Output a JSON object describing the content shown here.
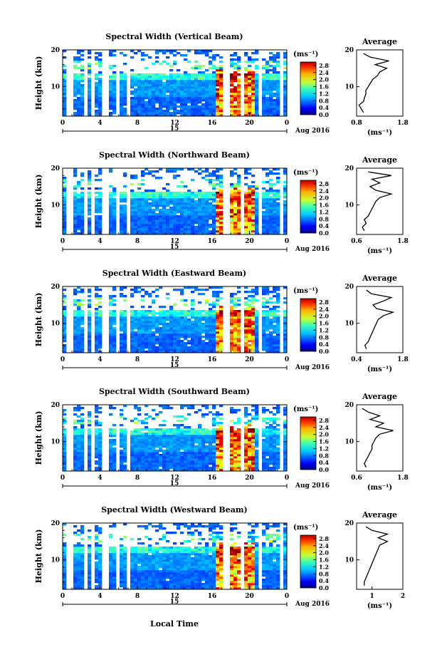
{
  "chart_data": {
    "type": "heatmap",
    "xlabel": "Local Time",
    "date_label": "Aug 2016",
    "day_label": "15",
    "x_ticks": [
      "0",
      "4",
      "8",
      "12",
      "16",
      "20",
      "0"
    ],
    "x_range_hours": [
      0,
      24
    ],
    "ylabel": "Height (km)",
    "y_ticks": [
      "10",
      "20"
    ],
    "ylim_km": [
      2,
      20
    ],
    "colorbar": {
      "unit": "(ms⁻¹)",
      "ticks": [
        "0.0",
        "0.4",
        "0.8",
        "1.2",
        "1.6",
        "2.0",
        "2.4",
        "2.8"
      ],
      "range": [
        0.0,
        3.0
      ]
    },
    "avg_title": "Average",
    "avg_unit": "(ms⁻¹)",
    "panels": [
      {
        "title": "Spectral Width (Vertical Beam)",
        "avg_xticks": [
          "0.8",
          "1.8"
        ],
        "avg_xrange": [
          0.8,
          1.8
        ],
        "avg_profile": {
          "height_km": [
            3,
            4,
            5,
            6,
            7,
            8,
            9,
            10,
            11,
            12,
            13,
            14,
            15,
            16,
            17,
            18,
            19
          ],
          "value": [
            0.95,
            0.9,
            0.85,
            0.95,
            0.97,
            1.0,
            1.0,
            1.05,
            1.1,
            1.15,
            1.25,
            1.3,
            1.45,
            1.2,
            1.5,
            1.1,
            0.95
          ]
        }
      },
      {
        "title": "Spectral Width (Northward Beam)",
        "avg_xticks": [
          "0.6",
          "1.8"
        ],
        "avg_xrange": [
          0.6,
          1.8
        ],
        "avg_profile": {
          "height_km": [
            3,
            4,
            5,
            6,
            7,
            8,
            9,
            10,
            11,
            12,
            13,
            14,
            15,
            16,
            17,
            18,
            19
          ],
          "value": [
            0.8,
            0.75,
            0.85,
            0.8,
            0.9,
            0.95,
            1.0,
            1.05,
            1.1,
            1.2,
            1.5,
            1.1,
            0.95,
            1.2,
            1.0,
            1.5,
            0.9
          ]
        }
      },
      {
        "title": "Spectral Width (Eastward Beam)",
        "avg_xticks": [
          "0.4",
          "1.8"
        ],
        "avg_xrange": [
          0.4,
          1.8
        ],
        "avg_profile": {
          "height_km": [
            3,
            4,
            5,
            6,
            7,
            8,
            9,
            10,
            11,
            12,
            13,
            14,
            15,
            16,
            17,
            18,
            19
          ],
          "value": [
            0.7,
            0.65,
            0.75,
            0.8,
            0.85,
            0.9,
            0.95,
            1.0,
            1.05,
            1.2,
            1.5,
            1.0,
            0.9,
            1.2,
            1.45,
            0.85,
            0.7
          ]
        }
      },
      {
        "title": "Spectral Width (Southward Beam)",
        "avg_xticks": [
          "0.6",
          "1.8"
        ],
        "avg_xrange": [
          0.6,
          1.8
        ],
        "avg_profile": {
          "height_km": [
            3,
            4,
            5,
            6,
            7,
            8,
            9,
            10,
            11,
            12,
            13,
            14,
            15,
            16,
            17,
            18,
            19
          ],
          "value": [
            0.85,
            0.8,
            0.85,
            0.9,
            0.95,
            1.0,
            1.0,
            1.05,
            1.1,
            1.2,
            1.55,
            1.1,
            1.3,
            0.95,
            1.2,
            0.9,
            0.75
          ]
        }
      },
      {
        "title": "Spectral Width (Westward Beam)",
        "avg_xticks": [
          "1",
          "2"
        ],
        "avg_xrange": [
          0.5,
          2.0
        ],
        "avg_profile": {
          "height_km": [
            3,
            4,
            5,
            6,
            7,
            8,
            9,
            10,
            11,
            12,
            13,
            14,
            15,
            16,
            17,
            18,
            19
          ],
          "value": [
            0.75,
            0.75,
            0.8,
            0.85,
            0.9,
            0.95,
            1.0,
            1.05,
            1.1,
            1.15,
            1.2,
            1.25,
            1.5,
            1.2,
            1.5,
            1.0,
            0.8
          ]
        }
      }
    ]
  }
}
